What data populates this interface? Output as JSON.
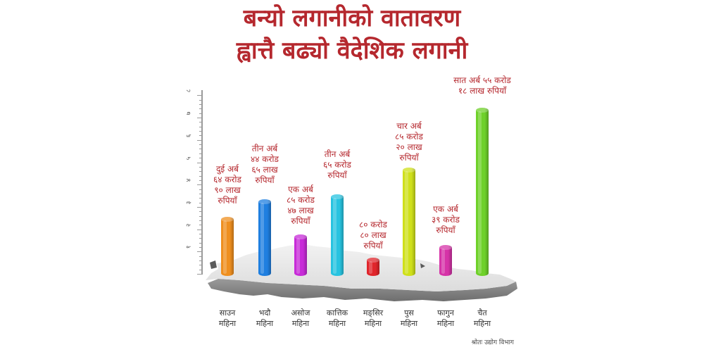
{
  "header": {
    "title_line1": "बन्यो लगानीको वातावरण",
    "title_line2": "ह्वात्तै बढ्यो वैदेशिक लगानी"
  },
  "source": "श्रोतः उद्योग विभाग",
  "colors": {
    "title": "#b5282e",
    "label": "#b5282e",
    "map": "#d9d9d9"
  },
  "chart_data": {
    "type": "bar",
    "title": "बन्यो लगानीको वातावरण ह्वात्तै बढ्यो वैदेशिक लगानी",
    "xlabel": "",
    "ylabel": "",
    "unit": "अर्ब रुपियाँ",
    "ylim": [
      0,
      8
    ],
    "yticks": [
      "१",
      "२",
      "३",
      "४",
      "५",
      "६",
      "७",
      "८"
    ],
    "grid": false,
    "legend": "none",
    "categories": [
      "साउन महिना",
      "भदौ महिना",
      "असोज महिना",
      "कात्तिक महिना",
      "मङ्सिर महिना",
      "पुस महिना",
      "फागुन महिना",
      "चैत महिना"
    ],
    "values": [
      2.649,
      3.4465,
      1.8547,
      3.65,
      0.808,
      4.852,
      1.39,
      7.5518
    ],
    "bar_colors": [
      "#ef8f1f",
      "#1f7fe0",
      "#c72bd8",
      "#27c3e0",
      "#e0252b",
      "#cfe01a",
      "#d633a8",
      "#6fd12a"
    ],
    "data_labels": [
      [
        "दुई अर्ब",
        "६४ करोड",
        "९० लाख",
        "रुपियाँ"
      ],
      [
        "तीन अर्ब",
        "४४ करोड",
        "६५ लाख",
        "रुपियाँ"
      ],
      [
        "एक अर्ब",
        "८५ करोड",
        "४७ लाख",
        "रुपियाँ"
      ],
      [
        "तीन अर्ब",
        "६५ करोड",
        "रुपियाँ"
      ],
      [
        "८० करोड",
        "८० लाख",
        "रुपियाँ"
      ],
      [
        "चार अर्ब",
        "८५ करोड",
        "२० लाख",
        "रुपियाँ"
      ],
      [
        "एक अर्ब",
        "३९ करोड",
        "रुपियाँ"
      ],
      [
        "सात अर्ब ५५ करोड",
        "१८ लाख रुपियाँ"
      ]
    ]
  },
  "xaxis": {
    "labels": [
      {
        "month": "साउन",
        "suffix": "महिना"
      },
      {
        "month": "भदौ",
        "suffix": "महिना"
      },
      {
        "month": "असोज",
        "suffix": "महिना"
      },
      {
        "month": "कात्तिक",
        "suffix": "महिना"
      },
      {
        "month": "मङ्सिर",
        "suffix": "महिना"
      },
      {
        "month": "पुस",
        "suffix": "महिना"
      },
      {
        "month": "फागुन",
        "suffix": "महिना"
      },
      {
        "month": "चैत",
        "suffix": "महिना"
      }
    ]
  }
}
